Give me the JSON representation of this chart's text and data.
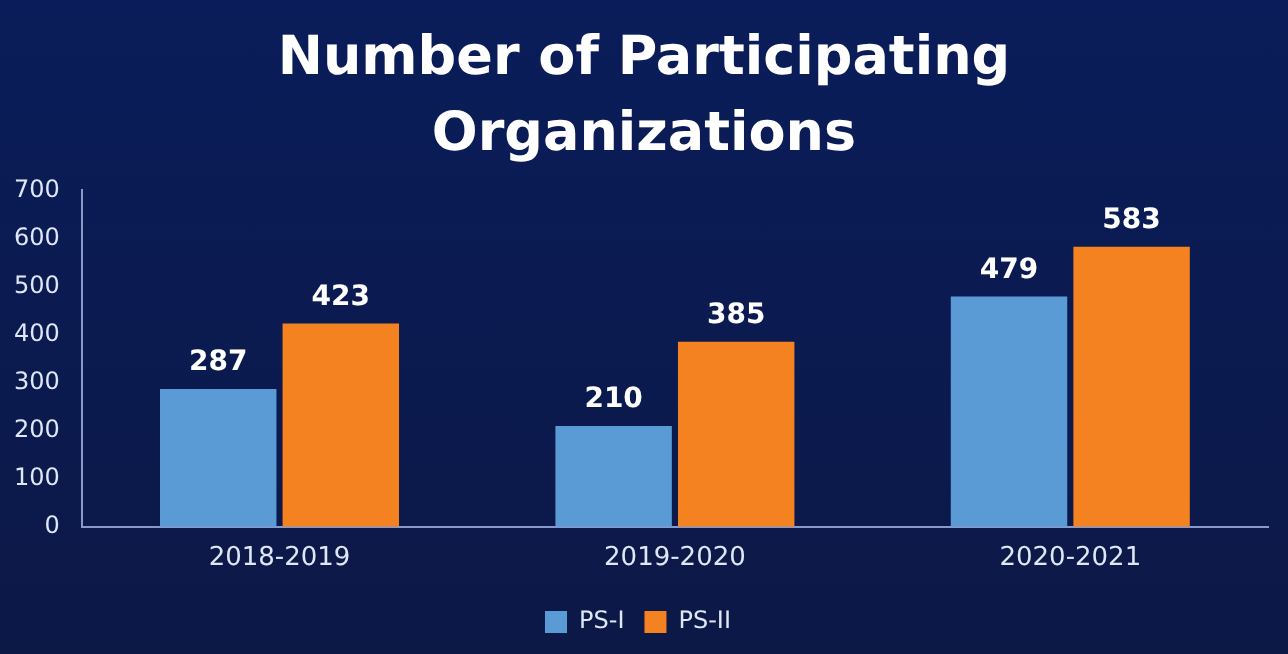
{
  "chart_data": {
    "type": "bar",
    "title": "Number of Participating Organizations",
    "categories": [
      "2018-2019",
      "2019-2020",
      "2020-2021"
    ],
    "series": [
      {
        "name": "PS-I",
        "color": "#5b9bd5",
        "values": [
          287,
          210,
          479
        ]
      },
      {
        "name": "PS-II",
        "color": "#f58220",
        "values": [
          423,
          385,
          583
        ]
      }
    ],
    "ylim": [
      0,
      700
    ],
    "yticks": [
      0,
      100,
      200,
      300,
      400,
      500,
      600,
      700
    ],
    "grid": false,
    "legend": "bottom",
    "data_labels": true
  }
}
